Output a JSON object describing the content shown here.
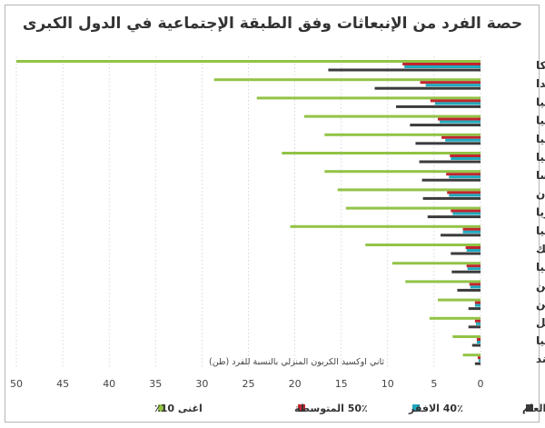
{
  "chart_data": {
    "type": "bar",
    "orientation": "horizontal",
    "title": "حصة الفرد من الإنبعاثات وفق الطبقة الإجتماعية في الدول الكبرى",
    "xlabel": "ثاني اوكسيد الكربون المنزلي بالنسبة للفرد (طن)",
    "xlim": [
      0,
      50
    ],
    "x_reversed": true,
    "xticks": [
      "50",
      "45",
      "40",
      "35",
      "30",
      "25",
      "20",
      "15",
      "10",
      "5",
      "0"
    ],
    "grid": true,
    "legend_position": "bottom",
    "categories": [
      "اميركا",
      "كندا",
      "بريطانيا",
      "المانيا",
      "إيطاليا",
      "روسيا",
      "فرنسا",
      "اليابان",
      "كوريا",
      "ج. افريقيا",
      "المكسيك",
      "تركيا",
      "الارجنتين",
      "الصين",
      "البرازيل",
      "اندونيسيا",
      "الهند"
    ],
    "series": [
      {
        "name": "اغنى 10٪",
        "color": "#92c347",
        "values": [
          50.0,
          28.7,
          24.1,
          19.0,
          16.8,
          21.4,
          16.8,
          15.4,
          14.5,
          20.5,
          12.4,
          9.5,
          8.1,
          4.6,
          5.5,
          3.0,
          1.9
        ]
      },
      {
        "name": "50٪ المتوسطة",
        "color": "#c0252d",
        "values": [
          8.4,
          6.5,
          5.4,
          4.6,
          4.2,
          3.3,
          3.7,
          3.6,
          3.2,
          1.9,
          1.6,
          1.5,
          1.2,
          0.6,
          0.6,
          0.4,
          0.3
        ]
      },
      {
        "name": "40٪ الافقر",
        "color": "#1fa9bf",
        "values": [
          8.2,
          5.9,
          4.9,
          4.4,
          3.8,
          3.2,
          3.4,
          3.4,
          3.0,
          1.9,
          1.5,
          1.4,
          1.1,
          0.6,
          0.5,
          0.4,
          0.2
        ]
      },
      {
        "name": "المعدل العام",
        "color": "#3b3b3b",
        "values": [
          16.4,
          11.4,
          9.1,
          7.6,
          7.0,
          6.6,
          6.3,
          6.2,
          5.7,
          4.3,
          3.2,
          3.1,
          2.5,
          1.3,
          1.3,
          0.9,
          0.6
        ]
      }
    ],
    "legend_order": [
      3,
      2,
      1,
      0
    ]
  }
}
